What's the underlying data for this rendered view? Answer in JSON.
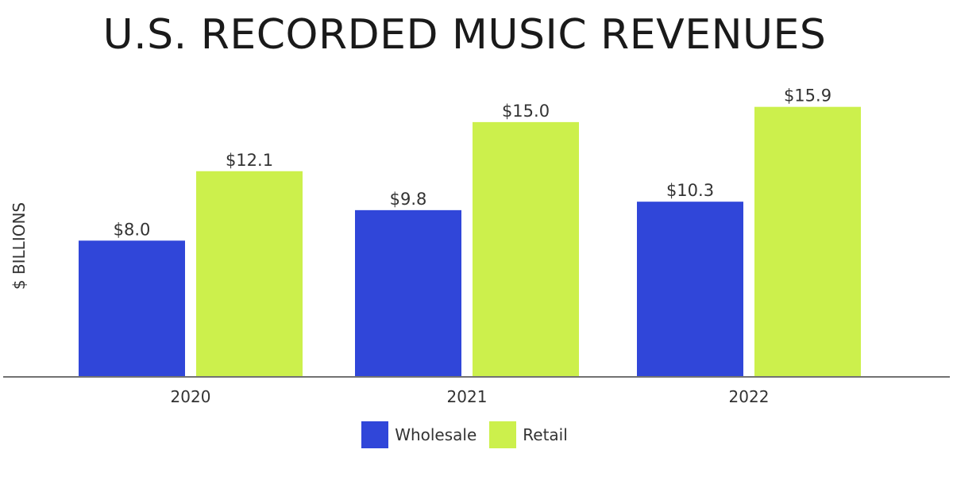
{
  "chart_data": {
    "type": "bar",
    "title": "U.S. RECORDED MUSIC REVENUES",
    "ylabel": "$ BILLIONS",
    "xlabel": "",
    "categories": [
      "2020",
      "2021",
      "2022"
    ],
    "series": [
      {
        "name": "Wholesale",
        "values": [
          8.0,
          9.8,
          10.3
        ],
        "labels": [
          "$8.0",
          "$9.8",
          "$10.3"
        ],
        "color": "#3046d9"
      },
      {
        "name": "Retail",
        "values": [
          12.1,
          15.0,
          15.9
        ],
        "labels": [
          "$12.1",
          "$15.0",
          "$15.9"
        ],
        "color": "#ccf04c"
      }
    ],
    "ylim": [
      0,
      16.4
    ],
    "grid": false,
    "legend_position": "bottom-center"
  }
}
